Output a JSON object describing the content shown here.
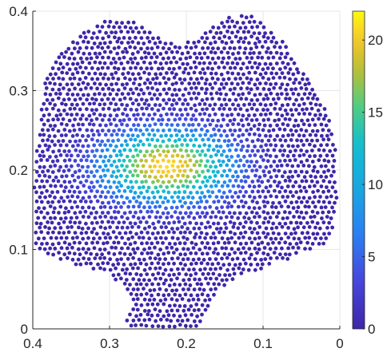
{
  "chart_data": {
    "type": "scatter",
    "title": "",
    "xlabel": "",
    "ylabel": "",
    "x_reversed": true,
    "xlim": [
      0,
      0.4
    ],
    "ylim": [
      0,
      0.4
    ],
    "grid": true,
    "x_ticks": [
      0.4,
      0.3,
      0.2,
      0.1,
      0
    ],
    "x_tick_labels": [
      "0.4",
      "0.3",
      "0.2",
      "0.1",
      "0"
    ],
    "y_ticks": [
      0,
      0.1,
      0.2,
      0.3,
      0.4
    ],
    "y_tick_labels": [
      "0",
      "0.1",
      "0.2",
      "0.3",
      "0.4"
    ],
    "colormap": "parula",
    "colorbar": {
      "range": [
        0,
        22
      ],
      "ticks": [
        0,
        5,
        10,
        15,
        20
      ],
      "tick_labels": [
        "0",
        "5",
        "10",
        "15",
        "20"
      ]
    },
    "hotspot": {
      "x": 0.225,
      "y": 0.205,
      "peak_value": 21
    },
    "colors": {
      "low": "#3e26a8",
      "mid": "#12bed0",
      "high": "#f9fb0e"
    }
  }
}
